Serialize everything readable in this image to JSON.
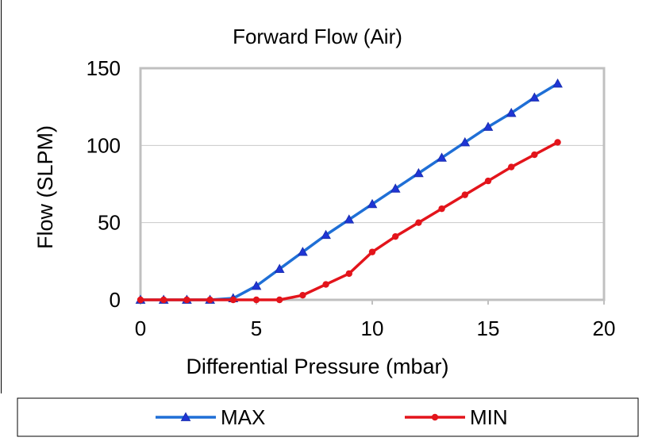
{
  "chart_data": {
    "type": "line",
    "title": "Forward Flow (Air)",
    "xlabel": "Differential Pressure (mbar)",
    "ylabel": "Flow (SLPM)",
    "xlim": [
      0,
      20
    ],
    "ylim": [
      0,
      150
    ],
    "xticks": [
      "0",
      "5",
      "10",
      "15",
      "20"
    ],
    "yticks": [
      "0",
      "50",
      "100",
      "150"
    ],
    "grid": true,
    "legend_position": "bottom",
    "series": [
      {
        "name": "MAX",
        "color": "#1f6fd6",
        "marker": "triangle",
        "x": [
          0,
          1,
          2,
          3,
          4,
          5,
          6,
          7,
          8,
          9,
          10,
          11,
          12,
          13,
          14,
          15,
          16,
          17,
          18
        ],
        "y": [
          0,
          0,
          0,
          0,
          1,
          9,
          20,
          31,
          42,
          52,
          62,
          72,
          82,
          92,
          102,
          112,
          121,
          131,
          140
        ]
      },
      {
        "name": "MIN",
        "color": "#e3141b",
        "marker": "circle",
        "x": [
          0,
          1,
          2,
          3,
          4,
          5,
          6,
          7,
          8,
          9,
          10,
          11,
          12,
          13,
          14,
          15,
          16,
          17,
          18
        ],
        "y": [
          0,
          0,
          0,
          0,
          0,
          0,
          0,
          3,
          10,
          17,
          31,
          41,
          50,
          59,
          68,
          77,
          86,
          94,
          102
        ]
      }
    ]
  }
}
